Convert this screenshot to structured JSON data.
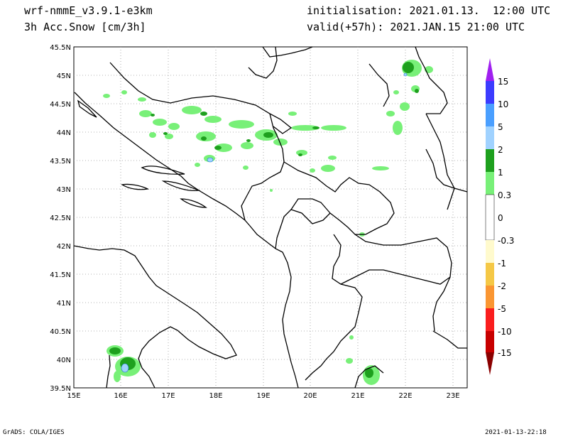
{
  "header": {
    "model": "wrf-nmmE_v3.9.1-e3km",
    "field": "3h Acc.Snow [cm/3h]",
    "init": "initialisation: 2021.01.13.  12:00 UTC",
    "valid": "valid(+57h): 2021.JAN.15 21:00 UTC"
  },
  "footer": {
    "left": "GrADS: COLA/IGES",
    "right": "2021-01-13-22:18"
  },
  "map": {
    "lat_labels": [
      "45.5N",
      "45N",
      "44.5N",
      "44N",
      "43.5N",
      "43N",
      "42.5N",
      "42N",
      "41.5N",
      "41N",
      "40.5N",
      "40N",
      "39.5N"
    ],
    "lon_labels": [
      "15E",
      "16E",
      "17E",
      "18E",
      "19E",
      "20E",
      "21E",
      "22E",
      "23E"
    ]
  },
  "colorbar": {
    "labels": [
      "15",
      "10",
      "5",
      "2",
      "1",
      "0.3",
      "0",
      "-0.3",
      "-1",
      "-2",
      "-5",
      "-10",
      "-15"
    ],
    "colors": {
      "top_arrow": "#a020f0",
      "c_10_15": "#3c3cff",
      "c_5_10": "#4a9fff",
      "c_2_5": "#a0d2ff",
      "c_1_2": "#1ea01e",
      "c_03_1": "#78f078",
      "neutral": "#ffffff",
      "n_03_1": "#fffacd",
      "n_1_2": "#f5c846",
      "n_2_5": "#fa9632",
      "n_5_10": "#fa1e1e",
      "n_10_15": "#c80000",
      "bottom_arrow": "#8b0000"
    }
  }
}
